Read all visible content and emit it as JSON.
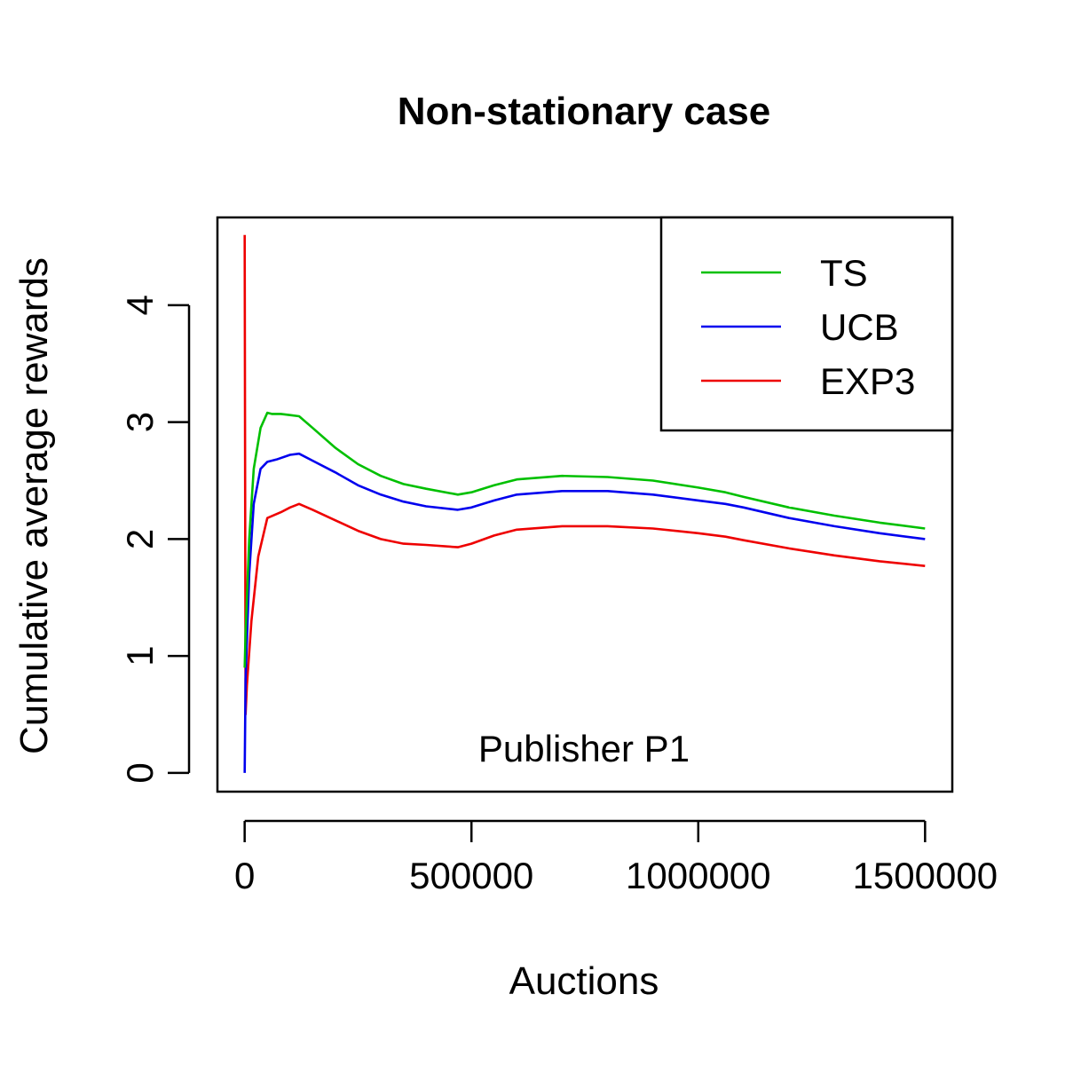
{
  "chart_data": {
    "type": "line",
    "title": "Non-stationary case",
    "xlabel": "Auctions",
    "ylabel": "Cumulative average rewards",
    "xlim": [
      -60000,
      1560000
    ],
    "ylim": [
      -0.16,
      4.75
    ],
    "xticks": [
      0,
      500000,
      1000000,
      1500000
    ],
    "xtick_labels": [
      "0",
      "500000",
      "1000000",
      "1500000"
    ],
    "yticks": [
      0,
      1,
      2,
      3,
      4
    ],
    "ytick_labels": [
      "0",
      "1",
      "2",
      "3",
      "4"
    ],
    "grid": false,
    "legend_position": "top-right",
    "annotation": "Publisher P1",
    "series": [
      {
        "name": "TS",
        "color": "#00c000",
        "x": [
          0,
          2000,
          10000,
          20000,
          35000,
          50000,
          60000,
          80000,
          100000,
          120000,
          150000,
          200000,
          250000,
          300000,
          350000,
          400000,
          470000,
          500000,
          550000,
          600000,
          700000,
          800000,
          900000,
          1000000,
          1060000,
          1100000,
          1200000,
          1300000,
          1400000,
          1500000
        ],
        "values": [
          0.9,
          1.2,
          2.0,
          2.6,
          2.95,
          3.08,
          3.07,
          3.07,
          3.06,
          3.05,
          2.95,
          2.78,
          2.64,
          2.54,
          2.47,
          2.43,
          2.38,
          2.4,
          2.46,
          2.51,
          2.54,
          2.53,
          2.5,
          2.44,
          2.4,
          2.36,
          2.27,
          2.2,
          2.14,
          2.09
        ]
      },
      {
        "name": "UCB",
        "color": "#0000ee",
        "x": [
          0,
          2000,
          10000,
          20000,
          35000,
          50000,
          70000,
          100000,
          120000,
          150000,
          200000,
          250000,
          300000,
          350000,
          400000,
          470000,
          500000,
          550000,
          600000,
          700000,
          800000,
          900000,
          1000000,
          1060000,
          1100000,
          1200000,
          1300000,
          1400000,
          1500000
        ],
        "values": [
          0.0,
          0.8,
          1.7,
          2.3,
          2.6,
          2.66,
          2.68,
          2.72,
          2.73,
          2.67,
          2.57,
          2.46,
          2.38,
          2.32,
          2.28,
          2.25,
          2.27,
          2.33,
          2.38,
          2.41,
          2.41,
          2.38,
          2.33,
          2.3,
          2.27,
          2.18,
          2.11,
          2.05,
          2.0
        ]
      },
      {
        "name": "EXP3",
        "color": "#ee0000",
        "x": [
          0,
          1000,
          2000,
          5000,
          15000,
          30000,
          50000,
          80000,
          100000,
          120000,
          150000,
          200000,
          250000,
          300000,
          350000,
          400000,
          470000,
          500000,
          550000,
          600000,
          700000,
          800000,
          900000,
          1000000,
          1060000,
          1100000,
          1200000,
          1300000,
          1400000,
          1500000
        ],
        "values": [
          4.6,
          2.5,
          0.5,
          0.75,
          1.3,
          1.85,
          2.18,
          2.23,
          2.27,
          2.3,
          2.25,
          2.16,
          2.07,
          2.0,
          1.96,
          1.95,
          1.93,
          1.96,
          2.03,
          2.08,
          2.11,
          2.11,
          2.09,
          2.05,
          2.02,
          1.99,
          1.92,
          1.86,
          1.81,
          1.77
        ]
      }
    ]
  }
}
